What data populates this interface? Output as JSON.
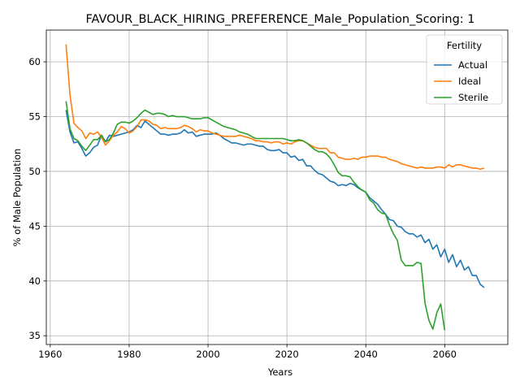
{
  "chart_data": {
    "type": "line",
    "title": "FAVOUR_BLACK_HIRING_PREFERENCE_Male_Population_Scoring: 1",
    "xlabel": "Years",
    "ylabel": "% of Male Population",
    "xlim": [
      1959,
      2076
    ],
    "ylim": [
      34.2,
      62.9
    ],
    "xticks": [
      1960,
      1980,
      2000,
      2020,
      2040,
      2060
    ],
    "yticks": [
      35,
      40,
      45,
      50,
      55,
      60
    ],
    "grid": true,
    "legend": {
      "title": "Fertility",
      "position": "top-right"
    },
    "series": [
      {
        "name": "Actual",
        "color": "#1f77b4",
        "x": [
          1964,
          1965,
          1966,
          1967,
          1968,
          1969,
          1970,
          1971,
          1972,
          1973,
          1974,
          1975,
          1976,
          1977,
          1978,
          1979,
          1980,
          1981,
          1982,
          1983,
          1984,
          1985,
          1986,
          1987,
          1988,
          1989,
          1990,
          1991,
          1992,
          1993,
          1994,
          1995,
          1996,
          1997,
          1998,
          1999,
          2000,
          2001,
          2002,
          2003,
          2004,
          2005,
          2006,
          2007,
          2008,
          2009,
          2010,
          2011,
          2012,
          2013,
          2014,
          2015,
          2016,
          2017,
          2018,
          2019,
          2020,
          2021,
          2022,
          2023,
          2024,
          2025,
          2026,
          2027,
          2028,
          2029,
          2030,
          2031,
          2032,
          2033,
          2034,
          2035,
          2036,
          2037,
          2038,
          2039,
          2040,
          2041,
          2042,
          2043,
          2044,
          2045,
          2046,
          2047,
          2048,
          2049,
          2050,
          2051,
          2052,
          2053,
          2054,
          2055,
          2056,
          2057,
          2058,
          2059,
          2060,
          2061,
          2062,
          2063,
          2064,
          2065,
          2066,
          2067,
          2068,
          2069,
          2070
        ],
        "values": [
          55.6,
          53.6,
          52.6,
          52.7,
          52.1,
          51.4,
          51.7,
          52.2,
          52.4,
          53.3,
          52.7,
          53.3,
          53.2,
          53.3,
          53.4,
          53.5,
          53.6,
          53.8,
          54.2,
          54.0,
          54.6,
          54.3,
          54.0,
          53.7,
          53.4,
          53.4,
          53.3,
          53.4,
          53.4,
          53.5,
          53.8,
          53.5,
          53.6,
          53.2,
          53.3,
          53.4,
          53.4,
          53.4,
          53.5,
          53.3,
          53.0,
          52.8,
          52.6,
          52.6,
          52.5,
          52.4,
          52.5,
          52.5,
          52.4,
          52.3,
          52.3,
          52.0,
          51.9,
          51.9,
          52.0,
          51.7,
          51.7,
          51.3,
          51.4,
          51.0,
          51.1,
          50.5,
          50.5,
          50.1,
          49.8,
          49.7,
          49.4,
          49.1,
          49.0,
          48.7,
          48.8,
          48.7,
          48.9,
          48.8,
          48.5,
          48.3,
          48.1,
          47.6,
          47.3,
          47.0,
          46.5,
          46.1,
          45.6,
          45.5,
          45.0,
          44.9,
          44.5,
          44.3,
          44.3,
          44.0,
          44.2,
          43.5,
          43.8,
          42.9,
          43.3,
          42.2,
          42.9,
          41.7,
          42.4,
          41.3,
          41.9,
          41.0,
          41.3,
          40.5,
          40.5,
          39.7,
          39.4
        ]
      },
      {
        "name": "Ideal",
        "color": "#ff7f0e",
        "x": [
          1964,
          1965,
          1966,
          1967,
          1968,
          1969,
          1970,
          1971,
          1972,
          1973,
          1974,
          1975,
          1976,
          1977,
          1978,
          1979,
          1980,
          1981,
          1982,
          1983,
          1984,
          1985,
          1986,
          1987,
          1988,
          1989,
          1990,
          1991,
          1992,
          1993,
          1994,
          1995,
          1996,
          1997,
          1998,
          1999,
          2000,
          2001,
          2002,
          2003,
          2004,
          2005,
          2006,
          2007,
          2008,
          2009,
          2010,
          2011,
          2012,
          2013,
          2014,
          2015,
          2016,
          2017,
          2018,
          2019,
          2020,
          2021,
          2022,
          2023,
          2024,
          2025,
          2026,
          2027,
          2028,
          2029,
          2030,
          2031,
          2032,
          2033,
          2034,
          2035,
          2036,
          2037,
          2038,
          2039,
          2040,
          2041,
          2042,
          2043,
          2044,
          2045,
          2046,
          2047,
          2048,
          2049,
          2050,
          2051,
          2052,
          2053,
          2054,
          2055,
          2056,
          2057,
          2058,
          2059,
          2060,
          2061,
          2062,
          2063,
          2064,
          2065,
          2066,
          2067,
          2068,
          2069,
          2070
        ],
        "values": [
          61.6,
          57.0,
          54.4,
          54.0,
          53.7,
          53.0,
          53.5,
          53.4,
          53.6,
          53.1,
          52.4,
          52.8,
          53.3,
          53.6,
          54.1,
          53.9,
          53.5,
          53.7,
          54.1,
          54.7,
          54.7,
          54.6,
          54.3,
          54.2,
          53.9,
          54.0,
          53.9,
          53.9,
          53.9,
          54.0,
          54.2,
          54.1,
          53.9,
          53.6,
          53.8,
          53.7,
          53.7,
          53.5,
          53.4,
          53.3,
          53.2,
          53.2,
          53.2,
          53.2,
          53.3,
          53.2,
          53.1,
          53.0,
          52.8,
          52.8,
          52.7,
          52.7,
          52.6,
          52.7,
          52.7,
          52.5,
          52.6,
          52.5,
          52.7,
          52.8,
          52.8,
          52.6,
          52.4,
          52.2,
          52.1,
          52.1,
          52.1,
          51.7,
          51.7,
          51.3,
          51.2,
          51.1,
          51.1,
          51.2,
          51.1,
          51.3,
          51.3,
          51.4,
          51.4,
          51.4,
          51.3,
          51.3,
          51.1,
          51.0,
          50.9,
          50.7,
          50.6,
          50.5,
          50.4,
          50.3,
          50.4,
          50.3,
          50.3,
          50.3,
          50.4,
          50.4,
          50.3,
          50.6,
          50.4,
          50.6,
          50.6,
          50.5,
          50.4,
          50.3,
          50.3,
          50.2,
          50.3
        ]
      },
      {
        "name": "Sterile",
        "color": "#2ca02c",
        "x": [
          1964,
          1965,
          1966,
          1967,
          1968,
          1969,
          1970,
          1971,
          1972,
          1973,
          1974,
          1975,
          1976,
          1977,
          1978,
          1979,
          1980,
          1981,
          1982,
          1983,
          1984,
          1985,
          1986,
          1987,
          1988,
          1989,
          1990,
          1991,
          1992,
          1993,
          1994,
          1995,
          1996,
          1997,
          1998,
          1999,
          2000,
          2001,
          2002,
          2003,
          2004,
          2005,
          2006,
          2007,
          2008,
          2009,
          2010,
          2011,
          2012,
          2013,
          2014,
          2015,
          2016,
          2017,
          2018,
          2019,
          2020,
          2021,
          2022,
          2023,
          2024,
          2025,
          2026,
          2027,
          2028,
          2029,
          2030,
          2031,
          2032,
          2033,
          2034,
          2035,
          2036,
          2037,
          2038,
          2039,
          2040,
          2041,
          2042,
          2043,
          2044,
          2045,
          2046,
          2047,
          2048,
          2049,
          2050,
          2051,
          2052,
          2053,
          2054,
          2055,
          2056,
          2057,
          2058,
          2059,
          2060
        ],
        "values": [
          56.4,
          53.9,
          53.0,
          52.8,
          52.3,
          51.9,
          52.4,
          52.9,
          52.9,
          53.3,
          52.7,
          52.9,
          53.5,
          54.3,
          54.5,
          54.5,
          54.4,
          54.6,
          54.9,
          55.3,
          55.6,
          55.4,
          55.2,
          55.3,
          55.3,
          55.2,
          55.0,
          55.1,
          55.0,
          55.0,
          55.0,
          54.9,
          54.8,
          54.8,
          54.8,
          54.9,
          54.9,
          54.7,
          54.5,
          54.3,
          54.1,
          54.0,
          53.9,
          53.8,
          53.6,
          53.5,
          53.4,
          53.2,
          53.0,
          53.0,
          53.0,
          53.0,
          53.0,
          53.0,
          53.0,
          53.0,
          52.9,
          52.8,
          52.8,
          52.9,
          52.8,
          52.6,
          52.3,
          52.0,
          51.8,
          51.8,
          51.6,
          51.2,
          50.6,
          49.9,
          49.6,
          49.6,
          49.5,
          49.0,
          48.6,
          48.3,
          48.1,
          47.4,
          47.1,
          46.5,
          46.2,
          46.1,
          45.1,
          44.3,
          43.7,
          41.9,
          41.4,
          41.4,
          41.4,
          41.7,
          41.6,
          38.0,
          36.4,
          35.6,
          37.1,
          37.9,
          35.5
        ]
      }
    ]
  }
}
